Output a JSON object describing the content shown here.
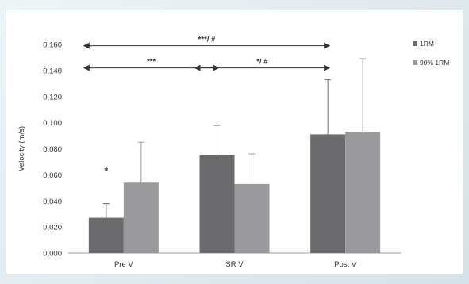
{
  "chart_data": {
    "type": "bar",
    "categories": [
      "Pre V",
      "SR V",
      "Post V"
    ],
    "series": [
      {
        "name": "1RM",
        "color": "#6b6b6e",
        "values": [
          0.027,
          0.075,
          0.091
        ],
        "errors": [
          0.011,
          0.023,
          0.042
        ]
      },
      {
        "name": "90% 1RM",
        "color": "#9a9a9c",
        "values": [
          0.054,
          0.053,
          0.093
        ],
        "errors": [
          0.031,
          0.023,
          0.056
        ]
      }
    ],
    "ylabel": "Velocity (m/s)",
    "xlabel": "",
    "ylim": [
      0,
      0.16
    ],
    "yticks": [
      0.0,
      0.02,
      0.04,
      0.06,
      0.08,
      0.1,
      0.12,
      0.14,
      0.16
    ],
    "ytick_labels": [
      "0,000",
      "0,020",
      "0,040",
      "0,060",
      "0,080",
      "0,100",
      "0,120",
      "0,140",
      "0,160"
    ],
    "grid": false,
    "legend_position": "top-right",
    "annotations": [
      {
        "text": "*",
        "category": "Pre V",
        "series": "1RM",
        "value": 0.063
      },
      {
        "text": "***/ #",
        "from": "Pre V",
        "to": "Post V",
        "value": 0.159
      },
      {
        "text": "***",
        "from": "Pre V",
        "to": "SR V",
        "value": 0.142
      },
      {
        "text": "*/ #",
        "from": "SR V",
        "to": "Post V",
        "value": 0.142
      }
    ]
  }
}
